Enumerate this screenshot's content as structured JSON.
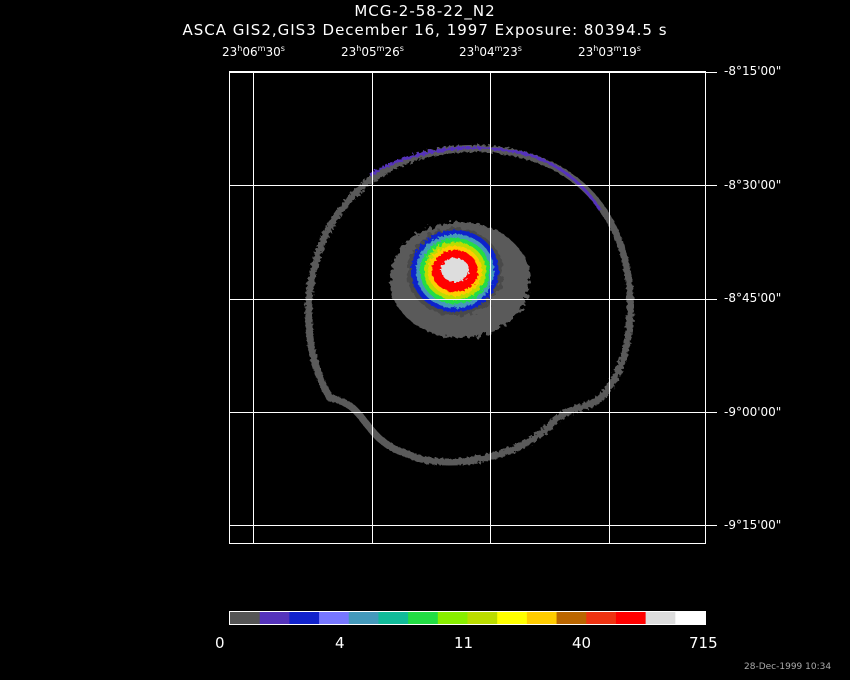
{
  "header": {
    "title": "MCG-2-58-22_N2",
    "subtitle": "ASCA GIS2,GIS3 December 16, 1997 Exposure: 80394.5 s"
  },
  "axes": {
    "ra_labels": [
      {
        "h": "23",
        "m": "06",
        "s": "30"
      },
      {
        "h": "23",
        "m": "05",
        "s": "26"
      },
      {
        "h": "23",
        "m": "04",
        "s": "23"
      },
      {
        "h": "23",
        "m": "03",
        "s": "19"
      }
    ],
    "dec_labels": [
      "-8°15'00\"",
      "-8°30'00\"",
      "-8°45'00\"",
      "-9°00'00\"",
      "-9°15'00\""
    ]
  },
  "colorbar": {
    "labels": [
      "0",
      "4",
      "11",
      "40",
      "715"
    ],
    "colors": [
      "#555555",
      "#5533bb",
      "#1122cc",
      "#7777ff",
      "#4499bb",
      "#11bb99",
      "#22dd44",
      "#88ee00",
      "#bbdd00",
      "#ffff00",
      "#ffcc00",
      "#bb6600",
      "#ee3311",
      "#ff0000",
      "#dddddd",
      "#ffffff"
    ]
  },
  "footer": {
    "timestamp": "28-Dec-1999 10:34"
  },
  "colors": {
    "background": "#000000",
    "grid": "#ffffff"
  }
}
